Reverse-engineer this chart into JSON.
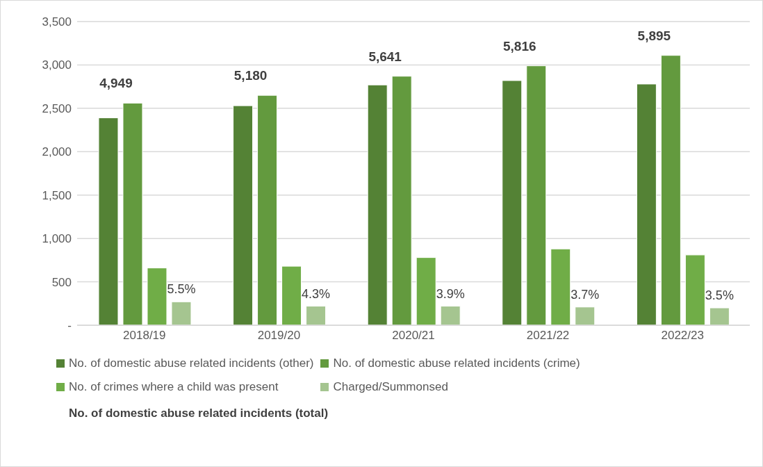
{
  "chart_data": {
    "type": "bar",
    "categories": [
      "2018/19",
      "2019/20",
      "2020/21",
      "2021/22",
      "2022/23"
    ],
    "series": [
      {
        "name": "No. of domestic abuse related incidents (other)",
        "color": "#548235",
        "values": [
          2390,
          2530,
          2770,
          2820,
          2780
        ]
      },
      {
        "name": "No. of domestic abuse related incidents (crime)",
        "color": "#639a3e",
        "values": [
          2560,
          2650,
          2870,
          2990,
          3110
        ]
      },
      {
        "name": "No. of crimes where a child was present",
        "color": "#70ad47",
        "values": [
          660,
          680,
          780,
          880,
          810
        ]
      },
      {
        "name": "Charged/Summonsed",
        "color": "#a5c590",
        "values": [
          270,
          220,
          220,
          210,
          200
        ]
      }
    ],
    "annotations": [
      "4,949",
      "5,180",
      "5,641",
      "5,816",
      "5,895",
      {
        "text": "5.5%",
        "x": "2018/19",
        "y": 270
      },
      {
        "text": "4.3%",
        "x": "2019/20",
        "y": 220
      },
      {
        "text": "3.9%",
        "x": "2020/21",
        "y": 220
      },
      {
        "text": "3.7%",
        "x": "2021/22",
        "y": 210
      },
      {
        "text": "3.5%",
        "x": "2022/23",
        "y": 200
      },
      "No. of domestic abuse related incidents (total)"
    ],
    "ylim": [
      0,
      3500
    ],
    "yticks": [
      {
        "value": 0,
        "label": "-"
      },
      {
        "value": 500,
        "label": "500"
      },
      {
        "value": 1000,
        "label": "1,000"
      },
      {
        "value": 1500,
        "label": "1,500"
      },
      {
        "value": 2000,
        "label": "2,000"
      },
      {
        "value": 2500,
        "label": "2,500"
      },
      {
        "value": 3000,
        "label": "3,000"
      },
      {
        "value": 3500,
        "label": "3,500"
      }
    ],
    "grid": "y",
    "legend": "bottom"
  }
}
